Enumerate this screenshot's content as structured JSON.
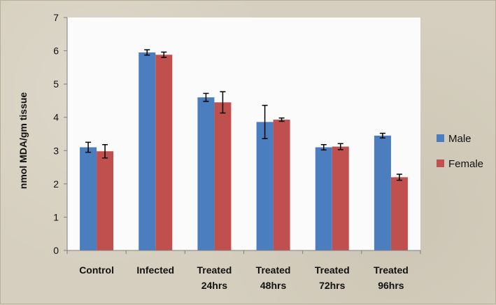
{
  "chart_data": {
    "type": "bar",
    "title": "",
    "xlabel": "",
    "ylabel": "nmol MDA/gm tissue",
    "ylim": [
      0,
      7
    ],
    "yticks": [
      0,
      1,
      2,
      3,
      4,
      5,
      6,
      7
    ],
    "categories": [
      [
        "Control"
      ],
      [
        "Infected"
      ],
      [
        "Treated",
        "24hrs"
      ],
      [
        "Treated",
        "48hrs"
      ],
      [
        "Treated",
        "72hrs"
      ],
      [
        "Treated",
        "96hrs"
      ]
    ],
    "series": [
      {
        "name": "Male",
        "color": "#4a7ebf",
        "values": [
          3.1,
          5.95,
          4.6,
          3.86,
          3.1,
          3.45
        ],
        "errors": [
          0.15,
          0.08,
          0.12,
          0.5,
          0.08,
          0.07
        ]
      },
      {
        "name": "Female",
        "color": "#c0504d",
        "values": [
          2.98,
          5.88,
          4.45,
          3.93,
          3.12,
          2.2
        ],
        "errors": [
          0.2,
          0.08,
          0.32,
          0.05,
          0.09,
          0.09
        ]
      }
    ],
    "grid": false,
    "legend_position": "right"
  }
}
